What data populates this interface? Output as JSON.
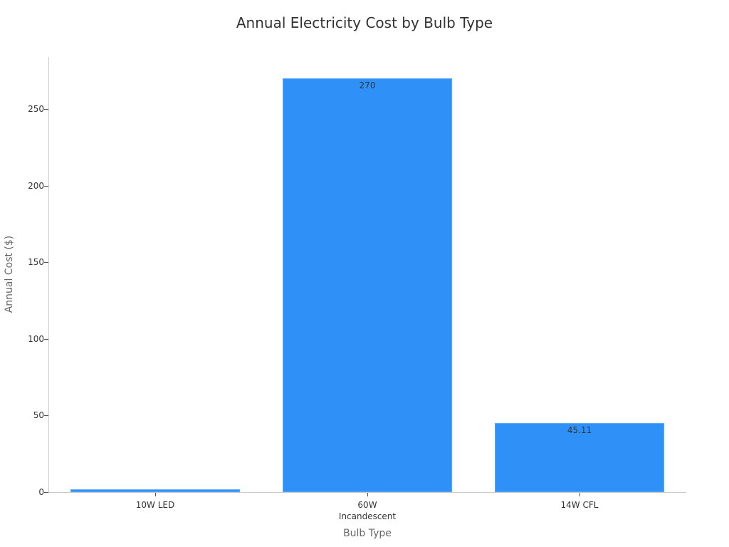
{
  "chart_data": {
    "type": "bar",
    "title": "Annual Electricity Cost by Bulb Type",
    "xlabel": "Bulb Type",
    "ylabel": "Annual Cost ($)",
    "categories": [
      "10W LED",
      "60W Incandescent",
      "14W CFL"
    ],
    "category_lines": [
      [
        "10W LED"
      ],
      [
        "60W",
        "Incandescent"
      ],
      [
        "14W CFL"
      ]
    ],
    "values": [
      1.8,
      270,
      45.11
    ],
    "data_labels": [
      "",
      "270",
      "45.11"
    ],
    "ylim": [
      0,
      284
    ],
    "yticks": [
      0,
      50,
      100,
      150,
      200,
      250
    ],
    "grid": false,
    "legend": null,
    "bar_color": "#2f91f7"
  }
}
